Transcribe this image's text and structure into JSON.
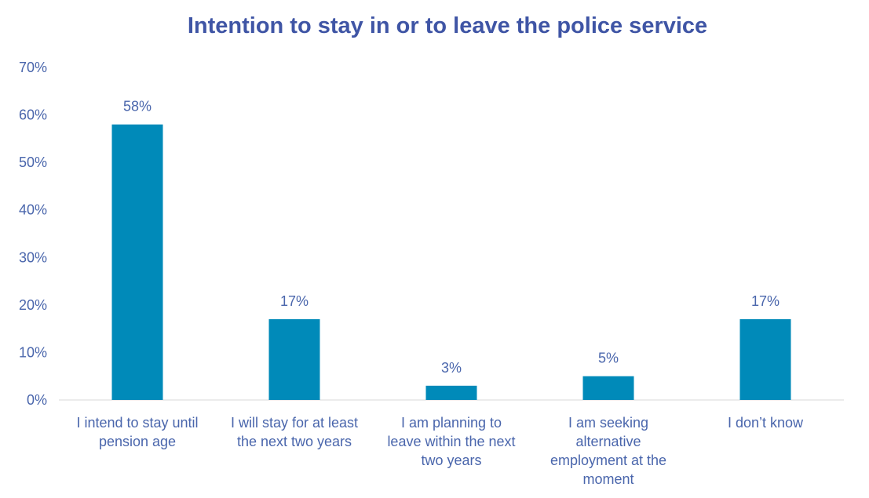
{
  "chart_data": {
    "type": "bar",
    "title": "Intention to stay in or to leave the police service",
    "categories": [
      [
        "I intend to stay until",
        "pension age"
      ],
      [
        "I will stay for at least",
        "the next two years"
      ],
      [
        "I am planning to",
        "leave within the next",
        "two years"
      ],
      [
        "I am seeking",
        "alternative",
        "employment at the",
        "moment"
      ],
      [
        "I don’t know"
      ]
    ],
    "values": [
      58,
      17,
      3,
      5,
      17
    ],
    "data_labels": [
      "58%",
      "17%",
      "3%",
      "5%",
      "17%"
    ],
    "y_ticks": [
      "0%",
      "10%",
      "20%",
      "30%",
      "40%",
      "50%",
      "60%",
      "70%"
    ],
    "ylim": [
      0,
      70
    ],
    "grid": false,
    "legend": "none",
    "bar_color": "#008ab9",
    "axis_color": "#d9d9d9"
  }
}
